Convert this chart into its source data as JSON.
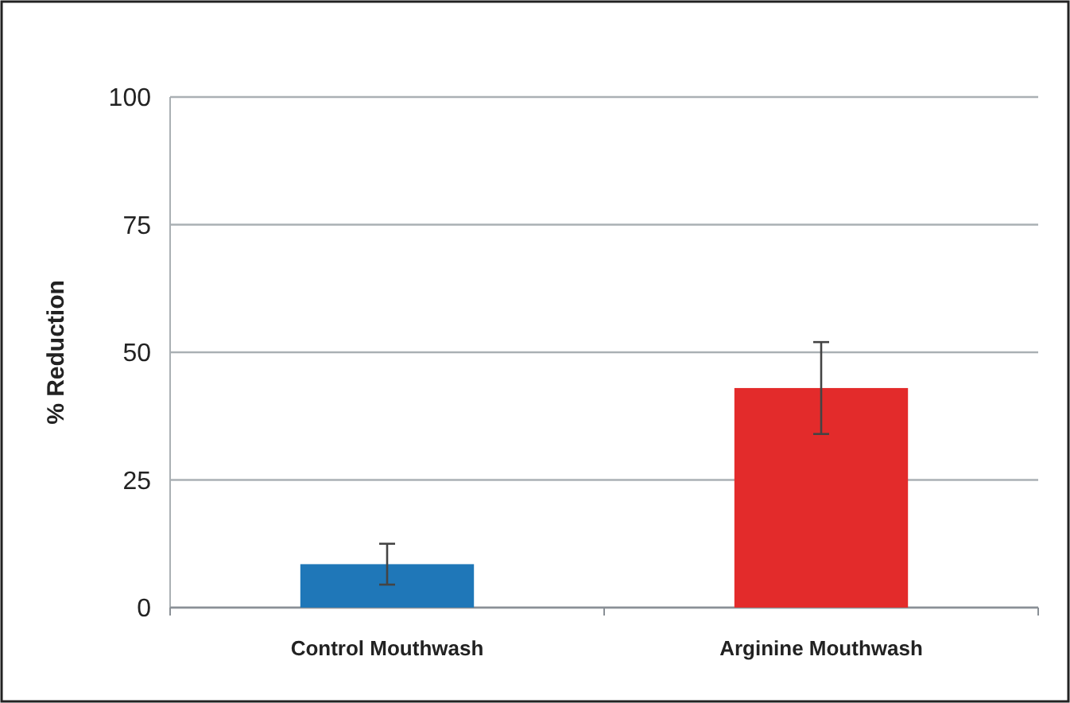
{
  "chart_data": {
    "type": "bar",
    "ylabel": "% Reduction",
    "categories": [
      "Control Mouthwash",
      "Arginine Mouthwash"
    ],
    "values": [
      8.5,
      43
    ],
    "colors": [
      "#1f77b8",
      "#e32b2b"
    ],
    "errors": [
      4,
      9
    ],
    "ylim": [
      0,
      100
    ],
    "yticks": [
      0,
      25,
      50,
      75,
      100
    ],
    "grid": "y"
  }
}
